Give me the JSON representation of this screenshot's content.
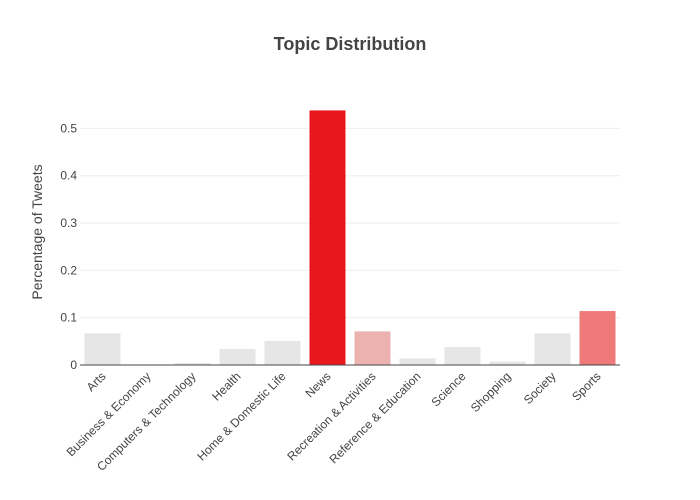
{
  "chart_data": {
    "type": "bar",
    "title": "Topic Distribution",
    "xlabel": "",
    "ylabel": "Percentage of Tweets",
    "ylim": [
      0,
      0.56
    ],
    "yticks": [
      "0",
      "0.1",
      "0.2",
      "0.3",
      "0.4",
      "0.5"
    ],
    "grid": true,
    "categories": [
      "Arts",
      "Business & Economy",
      "Computers & Technology",
      "Health",
      "Home & Domestic Life",
      "News",
      "Recreation & Activities",
      "Reference & Education",
      "Science",
      "Shopping",
      "Society",
      "Sports"
    ],
    "values": [
      0.067,
      0.001,
      0.004,
      0.034,
      0.051,
      0.538,
      0.071,
      0.014,
      0.038,
      0.007,
      0.067,
      0.114
    ],
    "colors": [
      "#e6e6e6",
      "#e6e6e6",
      "#e6e6e6",
      "#e6e6e6",
      "#e6e6e6",
      "#e8171e",
      "#ecb2b0",
      "#e6e6e6",
      "#e6e6e6",
      "#e6e6e6",
      "#e6e6e6",
      "#f07a7a"
    ]
  }
}
